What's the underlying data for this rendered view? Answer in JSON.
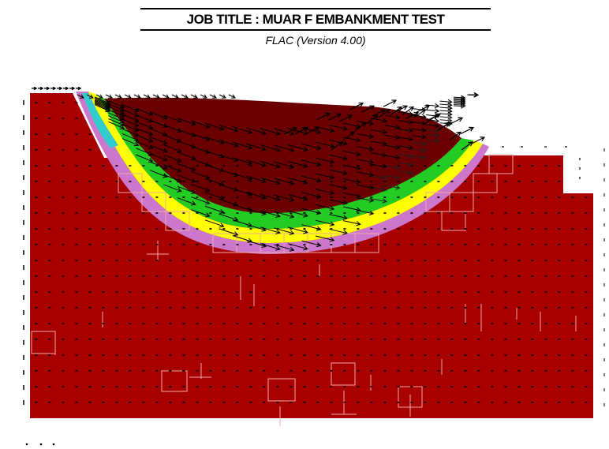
{
  "header": {
    "title": "JOB TITLE : MUAR F EMBANKMENT TEST",
    "subtitle": "FLAC (Version 4.00)"
  },
  "diagram": {
    "type": "displacement vector plot over failure zone contours",
    "colors": {
      "ground": "#a80000",
      "failure_magenta": "#cc77cc",
      "failure_yellow": "#ffff00",
      "failure_green": "#22cc22",
      "failure_cyan": "#33cccc",
      "embankment_dark": "#6a0000",
      "grid_line": "#f2a8a8",
      "vectors": "#000000"
    }
  }
}
